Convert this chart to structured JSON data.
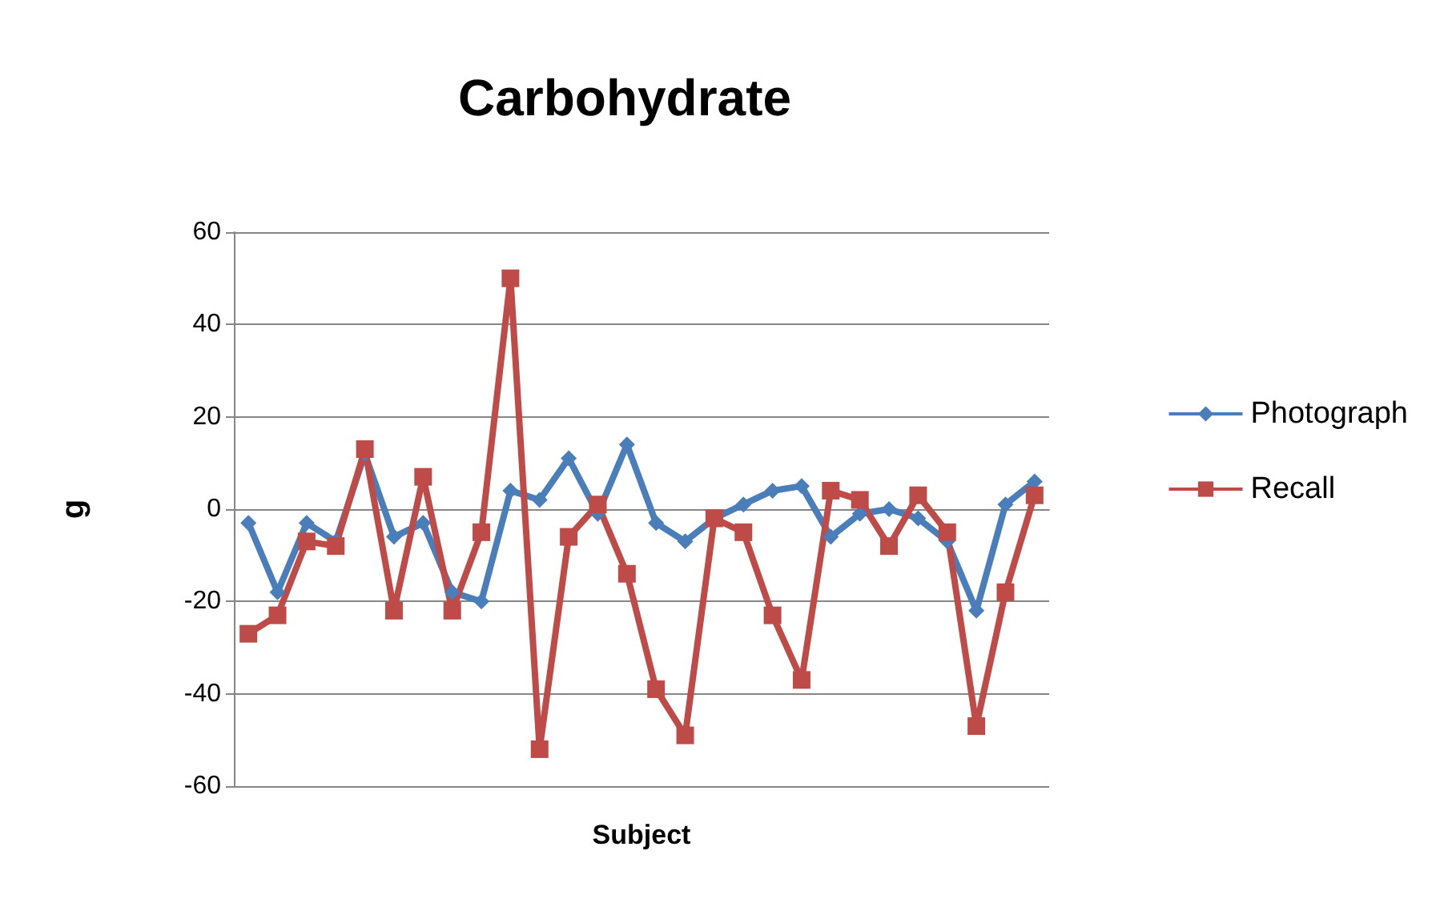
{
  "chart_data": {
    "type": "line",
    "title": "Carbohydrate",
    "xlabel": "Subject",
    "ylabel": "g",
    "categories": [
      null,
      null,
      null,
      null,
      null,
      null,
      null,
      null,
      null,
      null,
      null,
      null,
      null,
      null,
      null,
      null,
      null,
      null,
      null,
      null,
      null,
      null,
      null,
      null,
      null,
      null,
      null,
      null
    ],
    "series": [
      {
        "name": "Photograph",
        "color": "#4a7ebb",
        "marker": "diamond",
        "values": [
          -3,
          -18,
          -3,
          -7,
          12,
          -6,
          -3,
          -18,
          -20,
          4,
          2,
          11,
          -1,
          14,
          -3,
          -7,
          -2,
          1,
          4,
          5,
          -6,
          -1,
          0,
          -2,
          -7,
          -22,
          1,
          6
        ]
      },
      {
        "name": "Recall",
        "color": "#be4b48",
        "marker": "square",
        "values": [
          -27,
          -23,
          -7,
          -8,
          13,
          -22,
          7,
          -22,
          -5,
          50,
          -52,
          -6,
          1,
          -14,
          -39,
          -49,
          -2,
          -5,
          -23,
          -37,
          4,
          2,
          -8,
          3,
          -5,
          -47,
          -18,
          3
        ]
      }
    ],
    "ylim": [
      -60,
      60
    ],
    "yticks": [
      -60,
      -40,
      -20,
      0,
      20,
      40,
      60
    ],
    "grid": "y",
    "legend": "right",
    "line_style": "solid"
  }
}
